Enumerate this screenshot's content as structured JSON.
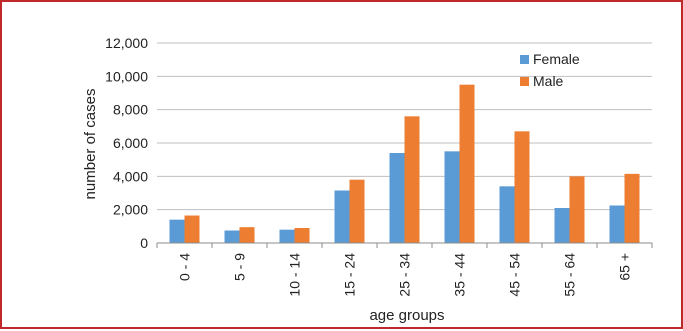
{
  "chart_data": {
    "type": "bar",
    "categories": [
      "0 - 4",
      "5 - 9",
      "10 - 14",
      "15 - 24",
      "25 - 34",
      "35 - 44",
      "45 - 54",
      "55 - 64",
      "65 +"
    ],
    "series": [
      {
        "name": "Female",
        "color": "#5b9bd5",
        "values": [
          1400,
          750,
          800,
          3150,
          5400,
          5500,
          3400,
          2100,
          2250
        ]
      },
      {
        "name": "Male",
        "color": "#ed7d31",
        "values": [
          1650,
          950,
          900,
          3800,
          7600,
          9500,
          6700,
          4000,
          4150
        ]
      }
    ],
    "xlabel": "age groups",
    "ylabel": "number of cases",
    "ylim": [
      0,
      12000
    ],
    "yticks": [
      "0",
      "2,000",
      "4,000",
      "6,000",
      "8,000",
      "10,000",
      "12,000"
    ],
    "grid": true,
    "legend_position": "top-right"
  }
}
